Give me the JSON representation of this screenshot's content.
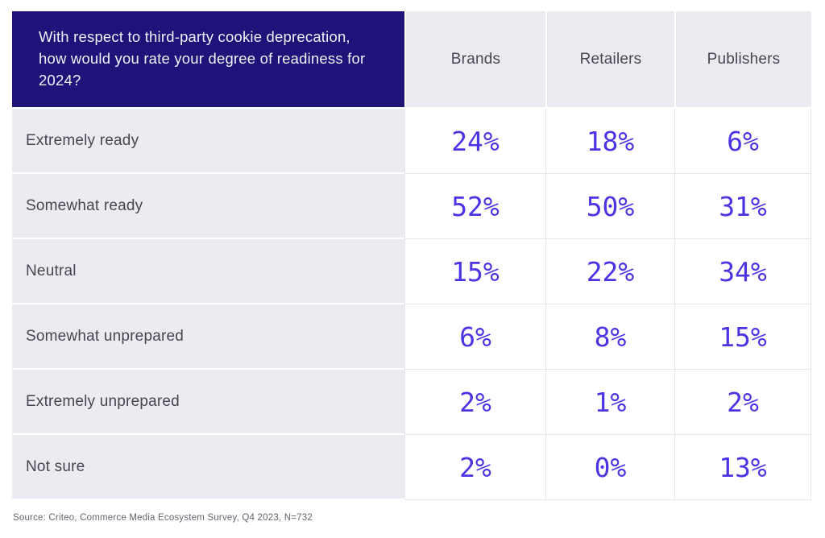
{
  "table": {
    "question": "With respect to third-party cookie deprecation, how would you rate your degree of readiness for 2024?",
    "columns": [
      "Brands",
      "Retailers",
      "Publishers"
    ],
    "rows": [
      {
        "label": "Extremely ready",
        "values": [
          "24%",
          "18%",
          "6%"
        ]
      },
      {
        "label": "Somewhat ready",
        "values": [
          "52%",
          "50%",
          "31%"
        ]
      },
      {
        "label": "Neutral",
        "values": [
          "15%",
          "22%",
          "34%"
        ]
      },
      {
        "label": "Somewhat unprepared",
        "values": [
          "6%",
          "8%",
          "15%"
        ]
      },
      {
        "label": "Extremely unprepared",
        "values": [
          "2%",
          "1%",
          "2%"
        ]
      },
      {
        "label": "Not sure",
        "values": [
          "2%",
          "0%",
          "13%"
        ]
      }
    ]
  },
  "footer": {
    "source": "Source: Criteo, Commerce Media Ecosystem Survey, Q4 2023, N=732"
  },
  "colors": {
    "question_header_bg": "#1d1379",
    "question_header_text": "#f1f0f8",
    "label_cell_bg": "#ebebf2",
    "label_text": "#46464e",
    "value_text": "#4b34e4",
    "grid_line": "#e7e7f0",
    "source_text": "#65656f"
  },
  "chart_data": {
    "type": "table",
    "title": "With respect to third-party cookie deprecation, how would you rate your degree of readiness for 2024?",
    "categories": [
      "Extremely ready",
      "Somewhat ready",
      "Neutral",
      "Somewhat unprepared",
      "Extremely unprepared",
      "Not sure"
    ],
    "series": [
      {
        "name": "Brands",
        "values": [
          24,
          52,
          15,
          6,
          2,
          2
        ]
      },
      {
        "name": "Retailers",
        "values": [
          18,
          50,
          22,
          8,
          1,
          0
        ]
      },
      {
        "name": "Publishers",
        "values": [
          6,
          31,
          34,
          15,
          2,
          13
        ]
      }
    ],
    "units": "%",
    "source": "Source: Criteo, Commerce Media Ecosystem Survey, Q4 2023, N=732"
  }
}
